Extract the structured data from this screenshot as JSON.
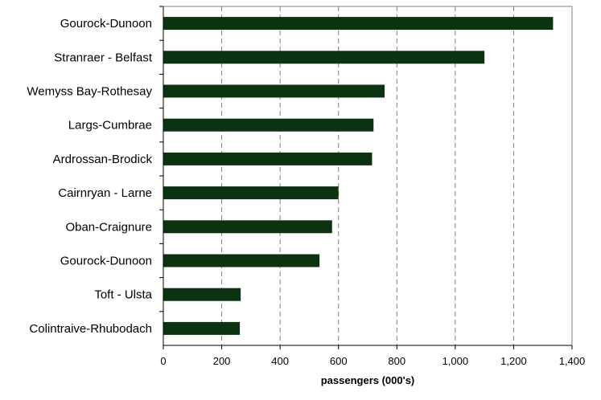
{
  "chart_data": {
    "type": "bar",
    "orientation": "horizontal",
    "categories": [
      "Gourock-Dunoon",
      "Stranraer - Belfast",
      "Wemyss Bay-Rothesay",
      "Largs-Cumbrae",
      "Ardrossan-Brodick",
      "Cairnryan - Larne",
      "Oban-Craignure",
      "Gourock-Dunoon",
      "Toft - Ulsta",
      "Colintraive-Rhubodach"
    ],
    "values": [
      1335,
      1100,
      758,
      720,
      715,
      600,
      578,
      535,
      265,
      262
    ],
    "title": "",
    "xlabel": "passengers (000's)",
    "ylabel": "",
    "xlim": [
      0,
      1400
    ],
    "xticks": [
      0,
      200,
      400,
      600,
      800,
      1000,
      1200,
      1400
    ],
    "xtick_labels": [
      "0",
      "200",
      "400",
      "600",
      "800",
      "1,000",
      "1,200",
      "1,400"
    ],
    "grid": "vertical dashed",
    "legend": "none",
    "bar_color": "#0b3311",
    "grid_color": "#808080"
  }
}
